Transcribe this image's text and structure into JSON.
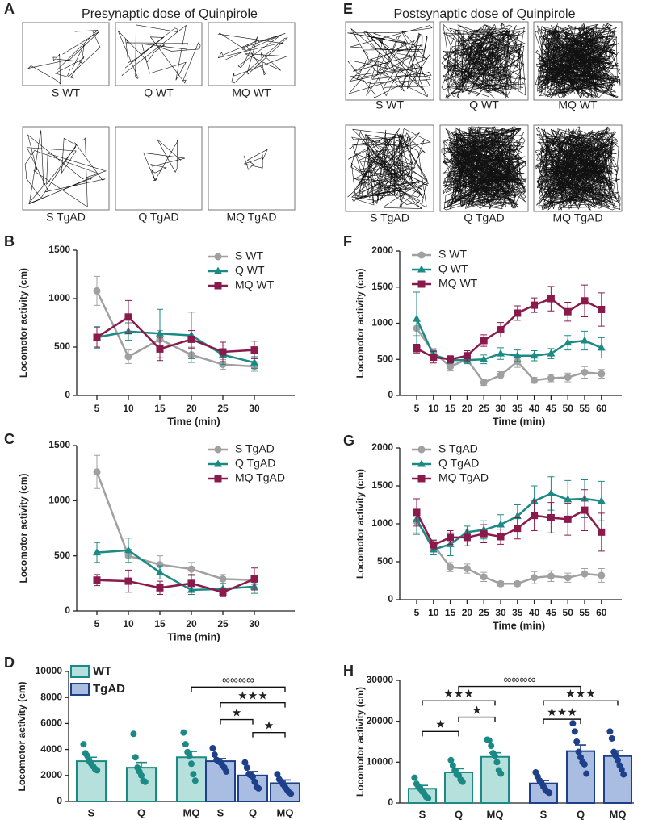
{
  "trajectory_panels": [
    {
      "panel": "A",
      "title": "Presynaptic dose of Quinpirole",
      "labels": [
        "S WT",
        "Q WT",
        "MQ WT",
        "S TgAD",
        "Q TgAD",
        "MQ TgAD"
      ]
    },
    {
      "panel": "E",
      "title": "Postsynaptic dose of Quinpirole",
      "labels": [
        "S WT",
        "Q WT",
        "MQ WT",
        "S TgAD",
        "Q TgAD",
        "MQ TgAD"
      ]
    }
  ],
  "chart_data": [
    {
      "panel": "B",
      "type": "line",
      "ylabel": "Locomotor activity (cm)",
      "xlabel": "Time (min)",
      "categories": [
        "5",
        "10",
        "15",
        "20",
        "25",
        "30"
      ],
      "ylim": [
        0,
        1500
      ],
      "yticks": [
        0,
        500,
        1000,
        1500
      ],
      "series": [
        {
          "name": "S WT",
          "color": "#a0a0a0",
          "marker": "circle",
          "values": [
            1080,
            400,
            580,
            420,
            320,
            300
          ],
          "errors": [
            150,
            70,
            90,
            80,
            50,
            50
          ]
        },
        {
          "name": "Q WT",
          "color": "#1b8a84",
          "marker": "triangle",
          "values": [
            600,
            660,
            640,
            620,
            420,
            340
          ],
          "errors": [
            110,
            90,
            250,
            240,
            100,
            60
          ]
        },
        {
          "name": "MQ WT",
          "color": "#8a1a4c",
          "marker": "square",
          "values": [
            600,
            810,
            480,
            580,
            450,
            470
          ],
          "errors": [
            100,
            170,
            120,
            90,
            100,
            90
          ]
        }
      ]
    },
    {
      "panel": "C",
      "type": "line",
      "ylabel": "Locomotor activity (cm)",
      "xlabel": "Time (min)",
      "categories": [
        "5",
        "10",
        "15",
        "20",
        "25",
        "30"
      ],
      "ylim": [
        0,
        1500
      ],
      "yticks": [
        0,
        500,
        1000,
        1500
      ],
      "series": [
        {
          "name": "S TgAD",
          "color": "#a0a0a0",
          "marker": "circle",
          "values": [
            1260,
            500,
            420,
            380,
            290,
            280
          ],
          "errors": [
            150,
            60,
            80,
            60,
            40,
            40
          ]
        },
        {
          "name": "Q TgAD",
          "color": "#1b8a84",
          "marker": "triangle",
          "values": [
            530,
            550,
            350,
            190,
            200,
            220
          ],
          "errors": [
            90,
            110,
            60,
            40,
            50,
            60
          ]
        },
        {
          "name": "MQ TgAD",
          "color": "#8a1a4c",
          "marker": "square",
          "values": [
            280,
            270,
            210,
            250,
            170,
            290
          ],
          "errors": [
            50,
            100,
            60,
            80,
            40,
            100
          ]
        }
      ]
    },
    {
      "panel": "F",
      "type": "line",
      "ylabel": "Locomotor activity (cm)",
      "xlabel": "Time (min)",
      "categories": [
        "5",
        "10",
        "15",
        "20",
        "25",
        "30",
        "35",
        "40",
        "45",
        "50",
        "55",
        "60"
      ],
      "ylim": [
        0,
        2000
      ],
      "yticks": [
        0,
        500,
        1000,
        1500,
        2000
      ],
      "series": [
        {
          "name": "S WT",
          "color": "#a0a0a0",
          "marker": "circle",
          "values": [
            930,
            600,
            400,
            500,
            180,
            280,
            470,
            210,
            240,
            250,
            320,
            300
          ],
          "errors": [
            100,
            50,
            60,
            50,
            40,
            50,
            80,
            40,
            50,
            60,
            80,
            60
          ]
        },
        {
          "name": "Q WT",
          "color": "#1b8a84",
          "marker": "triangle",
          "values": [
            1060,
            560,
            490,
            490,
            500,
            580,
            550,
            550,
            580,
            730,
            760,
            660
          ],
          "errors": [
            370,
            60,
            50,
            50,
            60,
            80,
            80,
            70,
            70,
            100,
            130,
            140
          ]
        },
        {
          "name": "MQ WT",
          "color": "#8a1a4c",
          "marker": "square",
          "values": [
            650,
            530,
            500,
            550,
            760,
            910,
            1140,
            1250,
            1340,
            1160,
            1310,
            1190
          ],
          "errors": [
            60,
            80,
            50,
            70,
            80,
            100,
            100,
            100,
            170,
            130,
            220,
            230
          ]
        }
      ]
    },
    {
      "panel": "G",
      "type": "line",
      "ylabel": "Locomotor activity (cm)",
      "xlabel": "Time (min)",
      "categories": [
        "5",
        "10",
        "15",
        "20",
        "25",
        "30",
        "35",
        "40",
        "45",
        "50",
        "55",
        "60"
      ],
      "ylim": [
        0,
        2000
      ],
      "yticks": [
        0,
        500,
        1000,
        1500,
        2000
      ],
      "series": [
        {
          "name": "S TgAD",
          "color": "#a0a0a0",
          "marker": "circle",
          "values": [
            1030,
            720,
            430,
            410,
            300,
            210,
            210,
            290,
            310,
            290,
            340,
            320
          ],
          "errors": [
            150,
            70,
            60,
            60,
            60,
            30,
            30,
            80,
            70,
            60,
            70,
            90
          ]
        },
        {
          "name": "Q TgAD",
          "color": "#1b8a84",
          "marker": "triangle",
          "values": [
            1060,
            660,
            730,
            890,
            920,
            990,
            1100,
            1300,
            1400,
            1320,
            1330,
            1300
          ],
          "errors": [
            200,
            70,
            150,
            80,
            120,
            130,
            150,
            200,
            220,
            250,
            250,
            260
          ]
        },
        {
          "name": "MQ TgAD",
          "color": "#8a1a4c",
          "marker": "square",
          "values": [
            1150,
            720,
            820,
            820,
            870,
            830,
            940,
            1110,
            1080,
            1060,
            1180,
            890
          ],
          "errors": [
            180,
            60,
            90,
            110,
            120,
            100,
            140,
            200,
            200,
            210,
            270,
            250
          ]
        }
      ]
    },
    {
      "panel": "D",
      "type": "bar",
      "ylabel": "Locomotor activity (cm)",
      "categories": [
        "S",
        "Q",
        "MQ"
      ],
      "ylim": [
        0,
        10000
      ],
      "yticks": [
        0,
        2000,
        4000,
        6000,
        8000,
        10000
      ],
      "series": [
        {
          "name": "WT",
          "color": "#1b8a84",
          "fill": "#b5e0dc",
          "values": [
            3100,
            2600,
            3400
          ],
          "errors": [
            300,
            400,
            450
          ],
          "points": [
            [
              4400,
              3700,
              3500,
              3100,
              2900,
              2700,
              2500,
              2400
            ],
            [
              5200,
              3400,
              2600,
              2300,
              2000,
              1600,
              1500
            ],
            [
              5300,
              4400,
              3800,
              3500,
              2900,
              2100,
              1600
            ]
          ]
        },
        {
          "name": "TgAD",
          "color": "#1e3f8a",
          "fill": "#a9bde2",
          "values": [
            3100,
            2000,
            1400
          ],
          "errors": [
            200,
            300,
            250
          ],
          "points": [
            [
              4100,
              3600,
              3200,
              3100,
              3000,
              2800,
              2600,
              2300
            ],
            [
              3000,
              2600,
              2100,
              2000,
              1900,
              1500,
              1100,
              1000
            ],
            [
              2100,
              1700,
              1500,
              1300,
              1100,
              900,
              700,
              600
            ]
          ]
        }
      ],
      "annotations": [
        "∞∞∞∞",
        "★★★",
        "★",
        "★"
      ]
    },
    {
      "panel": "H",
      "type": "bar",
      "ylabel": "Locomotor activity (cm)",
      "categories": [
        "S",
        "Q",
        "MQ"
      ],
      "ylim": [
        0,
        30000
      ],
      "yticks": [
        0,
        10000,
        20000,
        30000
      ],
      "series": [
        {
          "color": "#1b8a84",
          "fill": "#b5e0dc",
          "values": [
            3500,
            7500,
            11300
          ],
          "errors": [
            800,
            900,
            1000
          ],
          "points": [
            [
              6200,
              4700,
              4000,
              3500,
              2800,
              2300,
              1500,
              1200
            ],
            [
              10500,
              9200,
              8000,
              7000,
              6800,
              5700,
              5200
            ],
            [
              15500,
              15300,
              14000,
              12200,
              11500,
              10000,
              8000,
              7200
            ]
          ]
        },
        {
          "color": "#1e3f8a",
          "fill": "#a9bde2",
          "values": [
            4800,
            12700,
            11500
          ],
          "errors": [
            700,
            1500,
            1300
          ],
          "points": [
            [
              7500,
              6500,
              5500,
              4900,
              4000,
              3300,
              2800,
              2500
            ],
            [
              19500,
              17500,
              15000,
              12500,
              11200,
              10000,
              9500,
              7200
            ],
            [
              17500,
              15800,
              12500,
              11500,
              10500,
              9200,
              8200,
              7000
            ]
          ]
        }
      ],
      "annotations": [
        "★",
        "★★★",
        "★",
        "∞∞∞∞",
        "★★★",
        "★★★"
      ]
    }
  ]
}
